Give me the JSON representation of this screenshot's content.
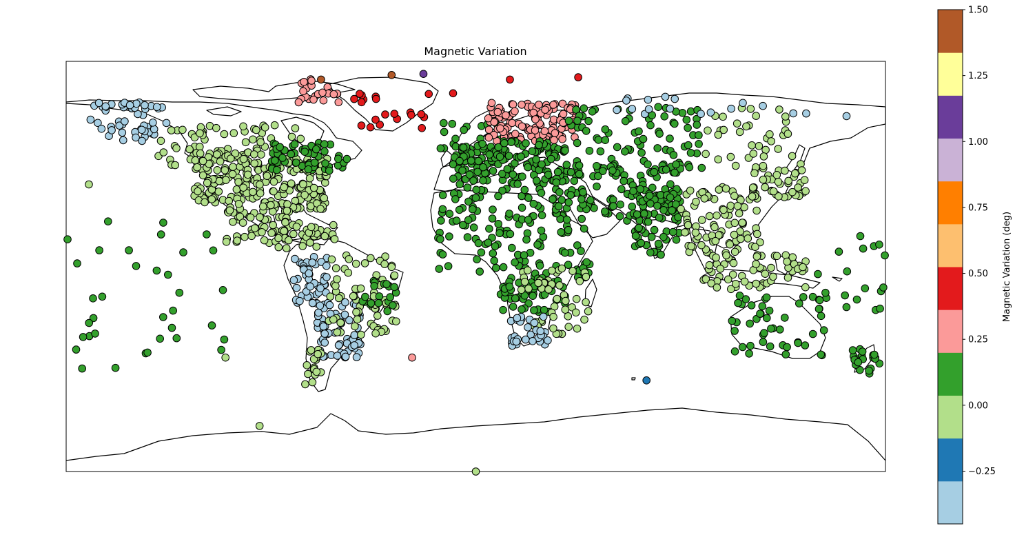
{
  "title": "Magnetic Variation",
  "colorbar": {
    "label": "Magnetic Variation (deg)",
    "tick_labels": [
      "1.50",
      "1.25",
      "1.00",
      "0.75",
      "0.50",
      "0.25",
      "0.00",
      "−0.25"
    ],
    "tick_values": [
      1.5,
      1.25,
      1.0,
      0.75,
      0.5,
      0.25,
      0.0,
      -0.25
    ],
    "range": [
      -0.45,
      1.5
    ],
    "colors": [
      "#a6cee3",
      "#1f78b4",
      "#b2df8a",
      "#33a02c",
      "#fb9a99",
      "#e31a1c",
      "#fdbf6f",
      "#ff7f00",
      "#cab2d6",
      "#6a3d9a",
      "#ffff99",
      "#b15928"
    ]
  },
  "chart_data": {
    "type": "scatter",
    "title": "Magnetic Variation",
    "projection": "plate-carree",
    "xlim": [
      -180,
      180
    ],
    "ylim": [
      -90,
      90
    ],
    "grid": false,
    "color_by": "Magnetic Variation (deg)",
    "regions": [
      {
        "lon": [
          -170,
          -135
        ],
        "lat": [
          55,
          72
        ],
        "n": 40,
        "value": -0.3
      },
      {
        "lon": [
          -168,
          -140
        ],
        "lat": [
          68,
          72
        ],
        "n": 12,
        "value": -0.4
      },
      {
        "lon": [
          -140,
          -75
        ],
        "lat": [
          42,
          62
        ],
        "n": 70,
        "value": 0.0
      },
      {
        "lon": [
          -124,
          -95
        ],
        "lat": [
          28,
          50
        ],
        "n": 110,
        "value": 0.0
      },
      {
        "lon": [
          -95,
          -65
        ],
        "lat": [
          25,
          48
        ],
        "n": 120,
        "value": 0.0
      },
      {
        "lon": [
          -90,
          -55
        ],
        "lat": [
          42,
          55
        ],
        "n": 60,
        "value": 0.1
      },
      {
        "lon": [
          -110,
          -82
        ],
        "lat": [
          10,
          28
        ],
        "n": 60,
        "value": 0.0
      },
      {
        "lon": [
          -90,
          -60
        ],
        "lat": [
          8,
          20
        ],
        "n": 40,
        "value": 0.0
      },
      {
        "lon": [
          -80,
          -65
        ],
        "lat": [
          -18,
          5
        ],
        "n": 45,
        "value": -0.3
      },
      {
        "lon": [
          -70,
          -50
        ],
        "lat": [
          -40,
          -15
        ],
        "n": 70,
        "value": -0.3
      },
      {
        "lon": [
          -65,
          -35
        ],
        "lat": [
          -30,
          5
        ],
        "n": 70,
        "value": 0.0
      },
      {
        "lon": [
          -50,
          -35
        ],
        "lat": [
          -20,
          -5
        ],
        "n": 20,
        "value": 0.1
      },
      {
        "lon": [
          -75,
          -68
        ],
        "lat": [
          -52,
          -35
        ],
        "n": 20,
        "value": 0.0
      },
      {
        "lon": [
          -80,
          -60
        ],
        "lat": [
          72,
          83
        ],
        "n": 25,
        "value": 0.3
      },
      {
        "lon": [
          -55,
          -20
        ],
        "lat": [
          60,
          78
        ],
        "n": 20,
        "value": 0.45
      },
      {
        "lon": [
          -20,
          15
        ],
        "lat": [
          50,
          63
        ],
        "n": 20,
        "value": 0.1
      },
      {
        "lon": [
          5,
          45
        ],
        "lat": [
          55,
          72
        ],
        "n": 120,
        "value": 0.3
      },
      {
        "lon": [
          -10,
          40
        ],
        "lat": [
          36,
          55
        ],
        "n": 150,
        "value": 0.1
      },
      {
        "lon": [
          40,
          100
        ],
        "lat": [
          40,
          70
        ],
        "n": 90,
        "value": 0.1
      },
      {
        "lon": [
          30,
          90
        ],
        "lat": [
          20,
          45
        ],
        "n": 110,
        "value": 0.1
      },
      {
        "lon": [
          -17,
          50
        ],
        "lat": [
          -5,
          35
        ],
        "n": 150,
        "value": 0.1
      },
      {
        "lon": [
          10,
          40
        ],
        "lat": [
          -20,
          -5
        ],
        "n": 50,
        "value": 0.1
      },
      {
        "lon": [
          20,
          50
        ],
        "lat": [
          -30,
          0
        ],
        "n": 50,
        "value": 0.0
      },
      {
        "lon": [
          15,
          32
        ],
        "lat": [
          -35,
          -22
        ],
        "n": 30,
        "value": -0.3
      },
      {
        "lon": [
          68,
          90
        ],
        "lat": [
          5,
          35
        ],
        "n": 60,
        "value": 0.1
      },
      {
        "lon": [
          90,
          125
        ],
        "lat": [
          5,
          35
        ],
        "n": 90,
        "value": 0.0
      },
      {
        "lon": [
          100,
          145
        ],
        "lat": [
          -10,
          5
        ],
        "n": 60,
        "value": 0.0
      },
      {
        "lon": [
          120,
          145
        ],
        "lat": [
          30,
          45
        ],
        "n": 40,
        "value": 0.0
      },
      {
        "lon": [
          100,
          140
        ],
        "lat": [
          40,
          70
        ],
        "n": 35,
        "value": 0.0
      },
      {
        "lon": [
          112,
          155
        ],
        "lat": [
          -40,
          -12
        ],
        "n": 45,
        "value": 0.1
      },
      {
        "lon": [
          165,
          178
        ],
        "lat": [
          -47,
          -35
        ],
        "n": 20,
        "value": 0.1
      },
      {
        "lon": [
          60,
          175
        ],
        "lat": [
          65,
          75
        ],
        "n": 18,
        "value": -0.3
      },
      {
        "lon": [
          -180,
          -110
        ],
        "lat": [
          -45,
          20
        ],
        "n": 35,
        "value": 0.05
      },
      {
        "lon": [
          150,
          180
        ],
        "lat": [
          -20,
          15
        ],
        "n": 20,
        "value": 0.05
      }
    ],
    "points": [
      {
        "lon": -37,
        "lat": 84,
        "value": 1.5
      },
      {
        "lon": -23,
        "lat": 84.5,
        "value": 1.1
      },
      {
        "lon": -68,
        "lat": 82,
        "value": 1.4
      },
      {
        "lon": -10,
        "lat": 76,
        "value": 0.5
      },
      {
        "lon": 15,
        "lat": 82,
        "value": 0.5
      },
      {
        "lon": 45,
        "lat": 83,
        "value": 0.5
      },
      {
        "lon": -28,
        "lat": -40,
        "value": 0.25
      },
      {
        "lon": -170,
        "lat": 36,
        "value": 0.0
      },
      {
        "lon": -110,
        "lat": -40,
        "value": 0.0
      },
      {
        "lon": 75,
        "lat": -50,
        "value": -0.25
      },
      {
        "lon": -95,
        "lat": -70,
        "value": 0.0
      },
      {
        "lon": 0,
        "lat": -90,
        "value": 0.0
      }
    ]
  }
}
